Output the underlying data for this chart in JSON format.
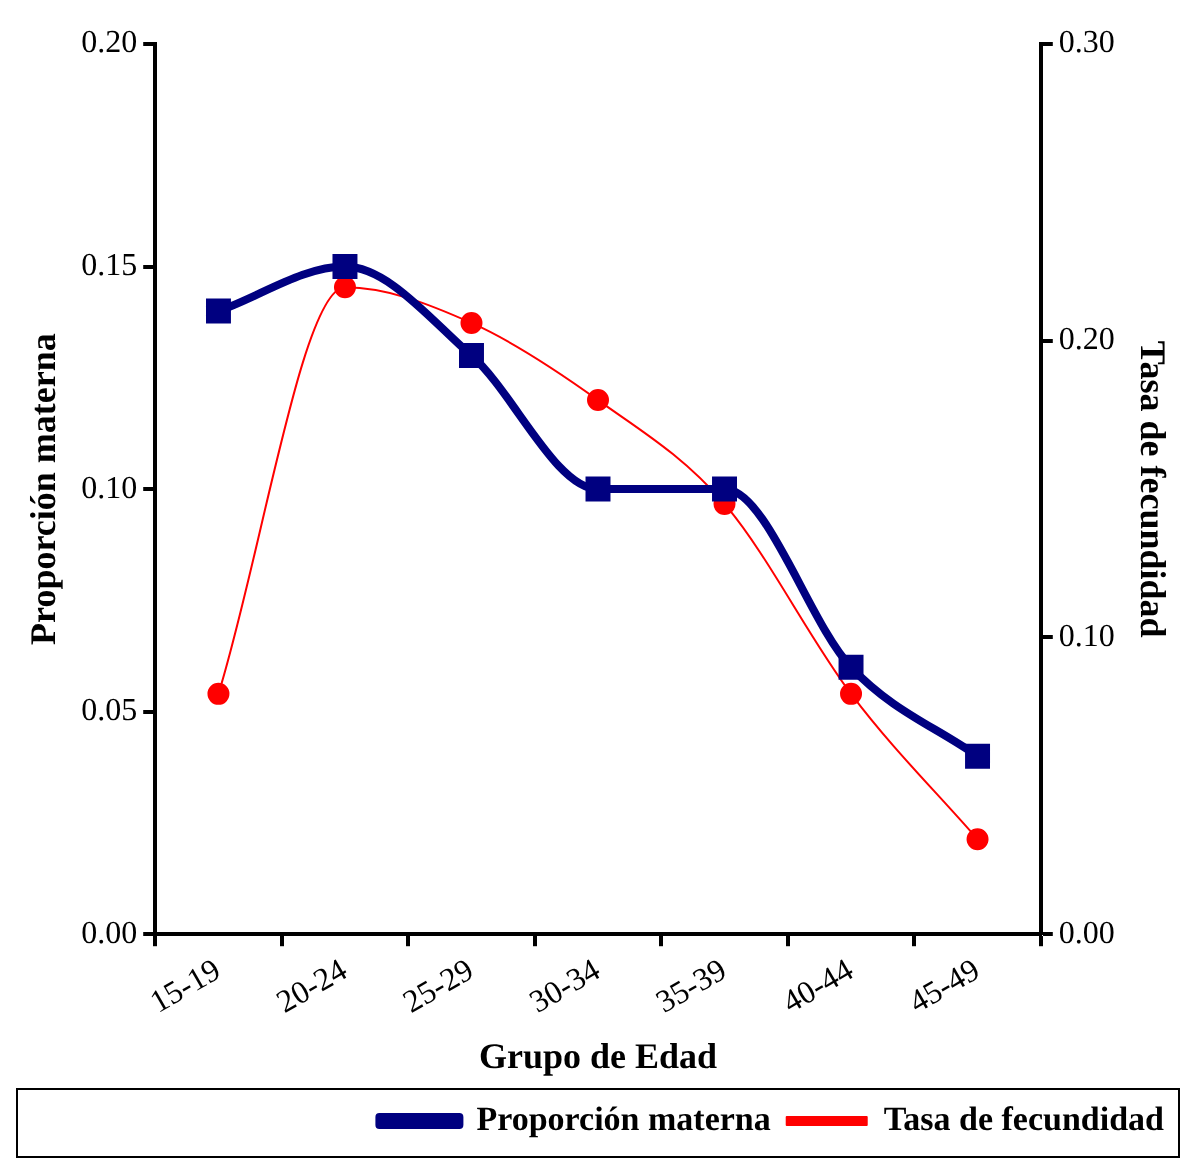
{
  "chart_data": {
    "type": "line",
    "xlabel": "Grupo de Edad",
    "ylabel": "Proporción materna",
    "y2label": "Tasa de fecundidad",
    "categories": [
      "15-19",
      "20-24",
      "25-29",
      "30-34",
      "35-39",
      "40-44",
      "45-49"
    ],
    "series": [
      {
        "name": "Proporción materna",
        "color": "#000080",
        "marker": "square",
        "values": [
          0.14,
          0.15,
          0.13,
          0.1,
          0.1,
          0.06,
          0.04
        ]
      },
      {
        "name": "Tasa de fecundidad",
        "color": "#ff0000",
        "marker": "circle",
        "axis": "y2",
        "values": [
          0.081,
          0.218,
          0.206,
          0.18,
          0.145,
          0.081,
          0.032
        ]
      }
    ],
    "ylim": [
      0,
      0.2
    ],
    "yticks": [
      {
        "value": 0,
        "label": "0.00"
      },
      {
        "value": 0.05,
        "label": "0.05"
      },
      {
        "value": 0.1,
        "label": "0.10"
      },
      {
        "value": 0.15,
        "label": "0.15"
      },
      {
        "value": 0.2,
        "label": "0.20"
      }
    ],
    "y2lim": [
      0,
      0.3
    ],
    "y2ticks": [
      {
        "value": 0,
        "label": "0.00"
      },
      {
        "value": 0.1,
        "label": "0.10"
      },
      {
        "value": 0.2,
        "label": "0.20"
      },
      {
        "value": 0.3,
        "label": "0.30"
      }
    ],
    "grid": false,
    "legend": "bottom right",
    "line_style": "solid"
  }
}
